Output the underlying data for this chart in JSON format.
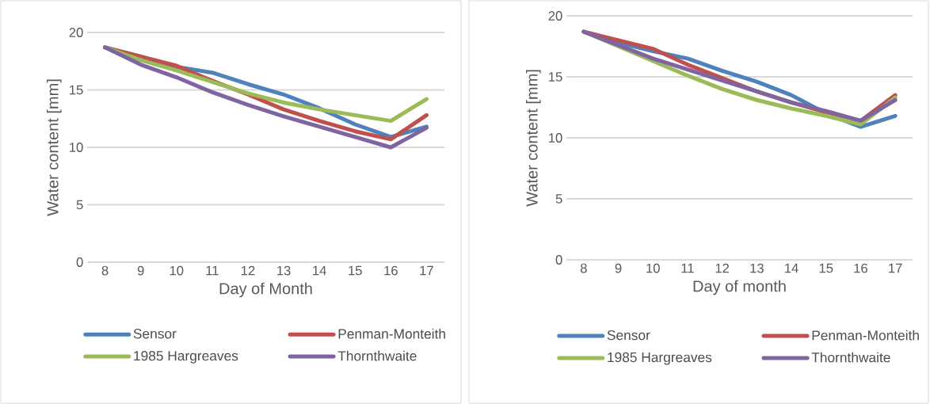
{
  "chart_data": [
    {
      "type": "line",
      "categories": [
        "8",
        "9",
        "10",
        "11",
        "12",
        "13",
        "14",
        "15",
        "16",
        "17"
      ],
      "xlabel": "Day of Month",
      "ylabel": "Water content [mm]",
      "ylim": [
        0,
        20
      ],
      "yticks": [
        0,
        5,
        10,
        15,
        20
      ],
      "grid": "y",
      "legend": "bottom",
      "series": [
        {
          "name": "Sensor",
          "color": "#4f81bd",
          "values": [
            18.7,
            17.9,
            17.0,
            16.5,
            15.5,
            14.6,
            13.4,
            12.0,
            10.9,
            11.8
          ]
        },
        {
          "name": "Penman-Monteith",
          "color": "#c0504d",
          "values": [
            18.7,
            17.9,
            17.1,
            15.8,
            14.6,
            13.3,
            12.3,
            11.4,
            10.7,
            12.8
          ]
        },
        {
          "name": "1985 Hargreaves",
          "color": "#9bbb59",
          "values": [
            18.7,
            17.6,
            16.7,
            15.7,
            14.7,
            13.9,
            13.3,
            12.8,
            12.3,
            14.2
          ]
        },
        {
          "name": "Thornthwaite",
          "color": "#8064a2",
          "values": [
            18.7,
            17.2,
            16.1,
            14.8,
            13.7,
            12.7,
            11.8,
            10.9,
            10.0,
            11.7
          ]
        }
      ]
    },
    {
      "type": "line",
      "categories": [
        "8",
        "9",
        "10",
        "11",
        "12",
        "13",
        "14",
        "15",
        "16",
        "17"
      ],
      "xlabel": "Day of month",
      "ylabel": "Water content [mm]",
      "ylim": [
        0,
        20
      ],
      "yticks": [
        0,
        5,
        10,
        15,
        20
      ],
      "grid": "y",
      "legend": "bottom",
      "series": [
        {
          "name": "Sensor",
          "color": "#4f81bd",
          "values": [
            18.7,
            17.8,
            17.1,
            16.5,
            15.5,
            14.6,
            13.5,
            12.0,
            10.9,
            11.8
          ]
        },
        {
          "name": "Penman-Monteith",
          "color": "#c0504d",
          "values": [
            18.7,
            18.0,
            17.3,
            16.0,
            14.9,
            13.8,
            12.9,
            12.1,
            11.4,
            13.5
          ]
        },
        {
          "name": "1985 Hargreaves",
          "color": "#9bbb59",
          "values": [
            18.7,
            17.5,
            16.3,
            15.1,
            14.0,
            13.1,
            12.4,
            11.8,
            11.1,
            13.3
          ]
        },
        {
          "name": "Thornthwaite",
          "color": "#8064a2",
          "values": [
            18.7,
            17.6,
            16.5,
            15.6,
            14.7,
            13.8,
            12.9,
            12.2,
            11.4,
            13.1
          ]
        }
      ]
    }
  ]
}
